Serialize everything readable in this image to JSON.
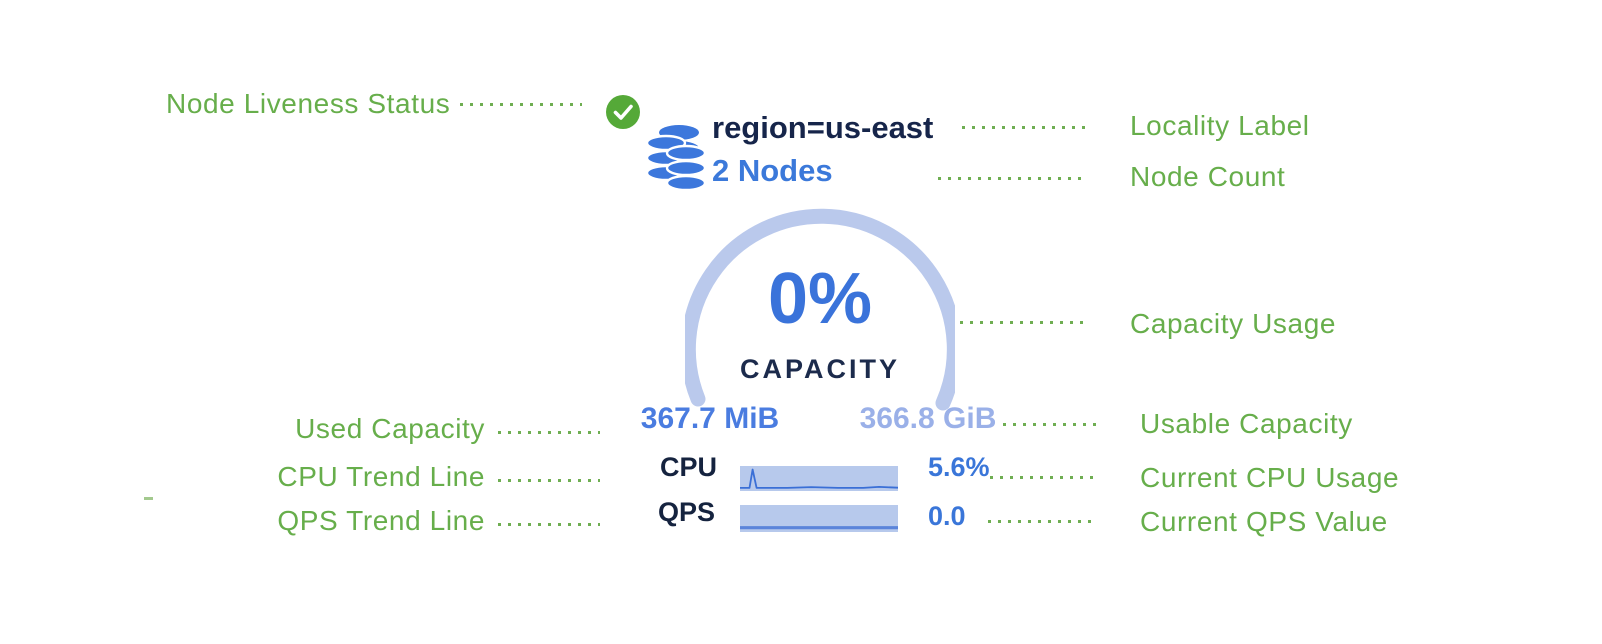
{
  "widget": {
    "locality_label": "region=us-east",
    "node_count": "2 Nodes",
    "capacity_percent": "0%",
    "capacity_caption": "CAPACITY",
    "used_capacity": "367.7 MiB",
    "usable_capacity": "366.8 GiB",
    "cpu": {
      "label": "CPU",
      "value": "5.6%"
    },
    "qps": {
      "label": "QPS",
      "value": "0.0"
    }
  },
  "annotations": {
    "node_liveness": "Node Liveness Status",
    "locality": "Locality Label",
    "node_count": "Node Count",
    "capacity_usage": "Capacity Usage",
    "used_capacity": "Used Capacity",
    "usable_capacity": "Usable Capacity",
    "cpu_trend": "CPU Trend Line",
    "qps_trend": "QPS Trend Line",
    "current_cpu": "Current CPU Usage",
    "current_qps": "Current QPS Value"
  },
  "icons": {
    "liveness": "check-icon",
    "nodes": "database-icon"
  },
  "sparklines": {
    "cpu": {
      "points": [
        [
          0,
          0.05
        ],
        [
          0.06,
          0.05
        ],
        [
          0.08,
          0.93
        ],
        [
          0.105,
          0.05
        ],
        [
          0.3,
          0.05
        ],
        [
          0.45,
          0.09
        ],
        [
          0.62,
          0.05
        ],
        [
          0.78,
          0.05
        ],
        [
          0.88,
          0.1
        ],
        [
          1,
          0.06
        ]
      ],
      "stroke_width": 1.8
    },
    "qps": {
      "points": [
        [
          0,
          0.1
        ],
        [
          1,
          0.1
        ]
      ],
      "stroke_width": 3.2
    }
  },
  "colors": {
    "annotation_green": "#67ae4b",
    "badge_green": "#55a938",
    "database_blue": "#3c77dc",
    "navy_text": "#16254a",
    "node_count_blue": "#3b79da",
    "gauge_arc_blue": "#bac9ec",
    "used_capacity_blue": "#4a7ce0",
    "usable_capacity_blue": "#9ab0e8",
    "sparkline_bg": "#b7c9ec",
    "sparkline_line": "#3a6fd6",
    "metric_value_blue": "#3a76d9"
  }
}
